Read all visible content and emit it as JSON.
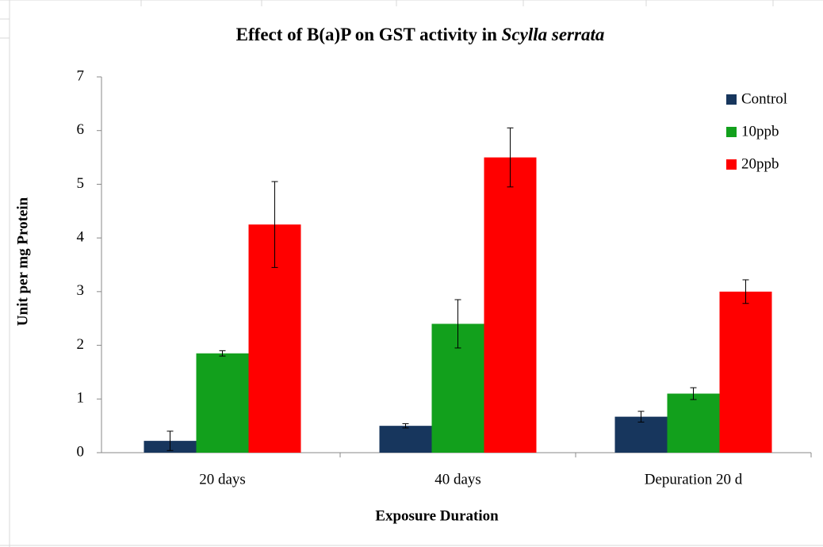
{
  "chart_data": {
    "type": "bar",
    "title": "Effect of B(a)P  on GST activity in",
    "title_italic": "Scylla serrata",
    "x_label": "Exposure Duration",
    "y_label": "Unit per mg Protein",
    "categories": [
      "20 days",
      "40 days",
      "Depuration 20 d"
    ],
    "series": [
      {
        "name": "Control",
        "color": "#17365d",
        "values": [
          0.22,
          0.5,
          0.67
        ],
        "errors": [
          0.18,
          0.04,
          0.1
        ]
      },
      {
        "name": "10ppb",
        "color": "#12a01c",
        "values": [
          1.85,
          2.4,
          1.1
        ],
        "errors": [
          0.05,
          0.45,
          0.11
        ]
      },
      {
        "name": "20ppb",
        "color": "#ff0000",
        "values": [
          4.25,
          5.5,
          3.0
        ],
        "errors": [
          0.8,
          0.55,
          0.22
        ]
      }
    ],
    "ylim": [
      0,
      7
    ],
    "yticks": [
      0,
      1,
      2,
      3,
      4,
      5,
      6,
      7
    ],
    "legend": "right"
  }
}
